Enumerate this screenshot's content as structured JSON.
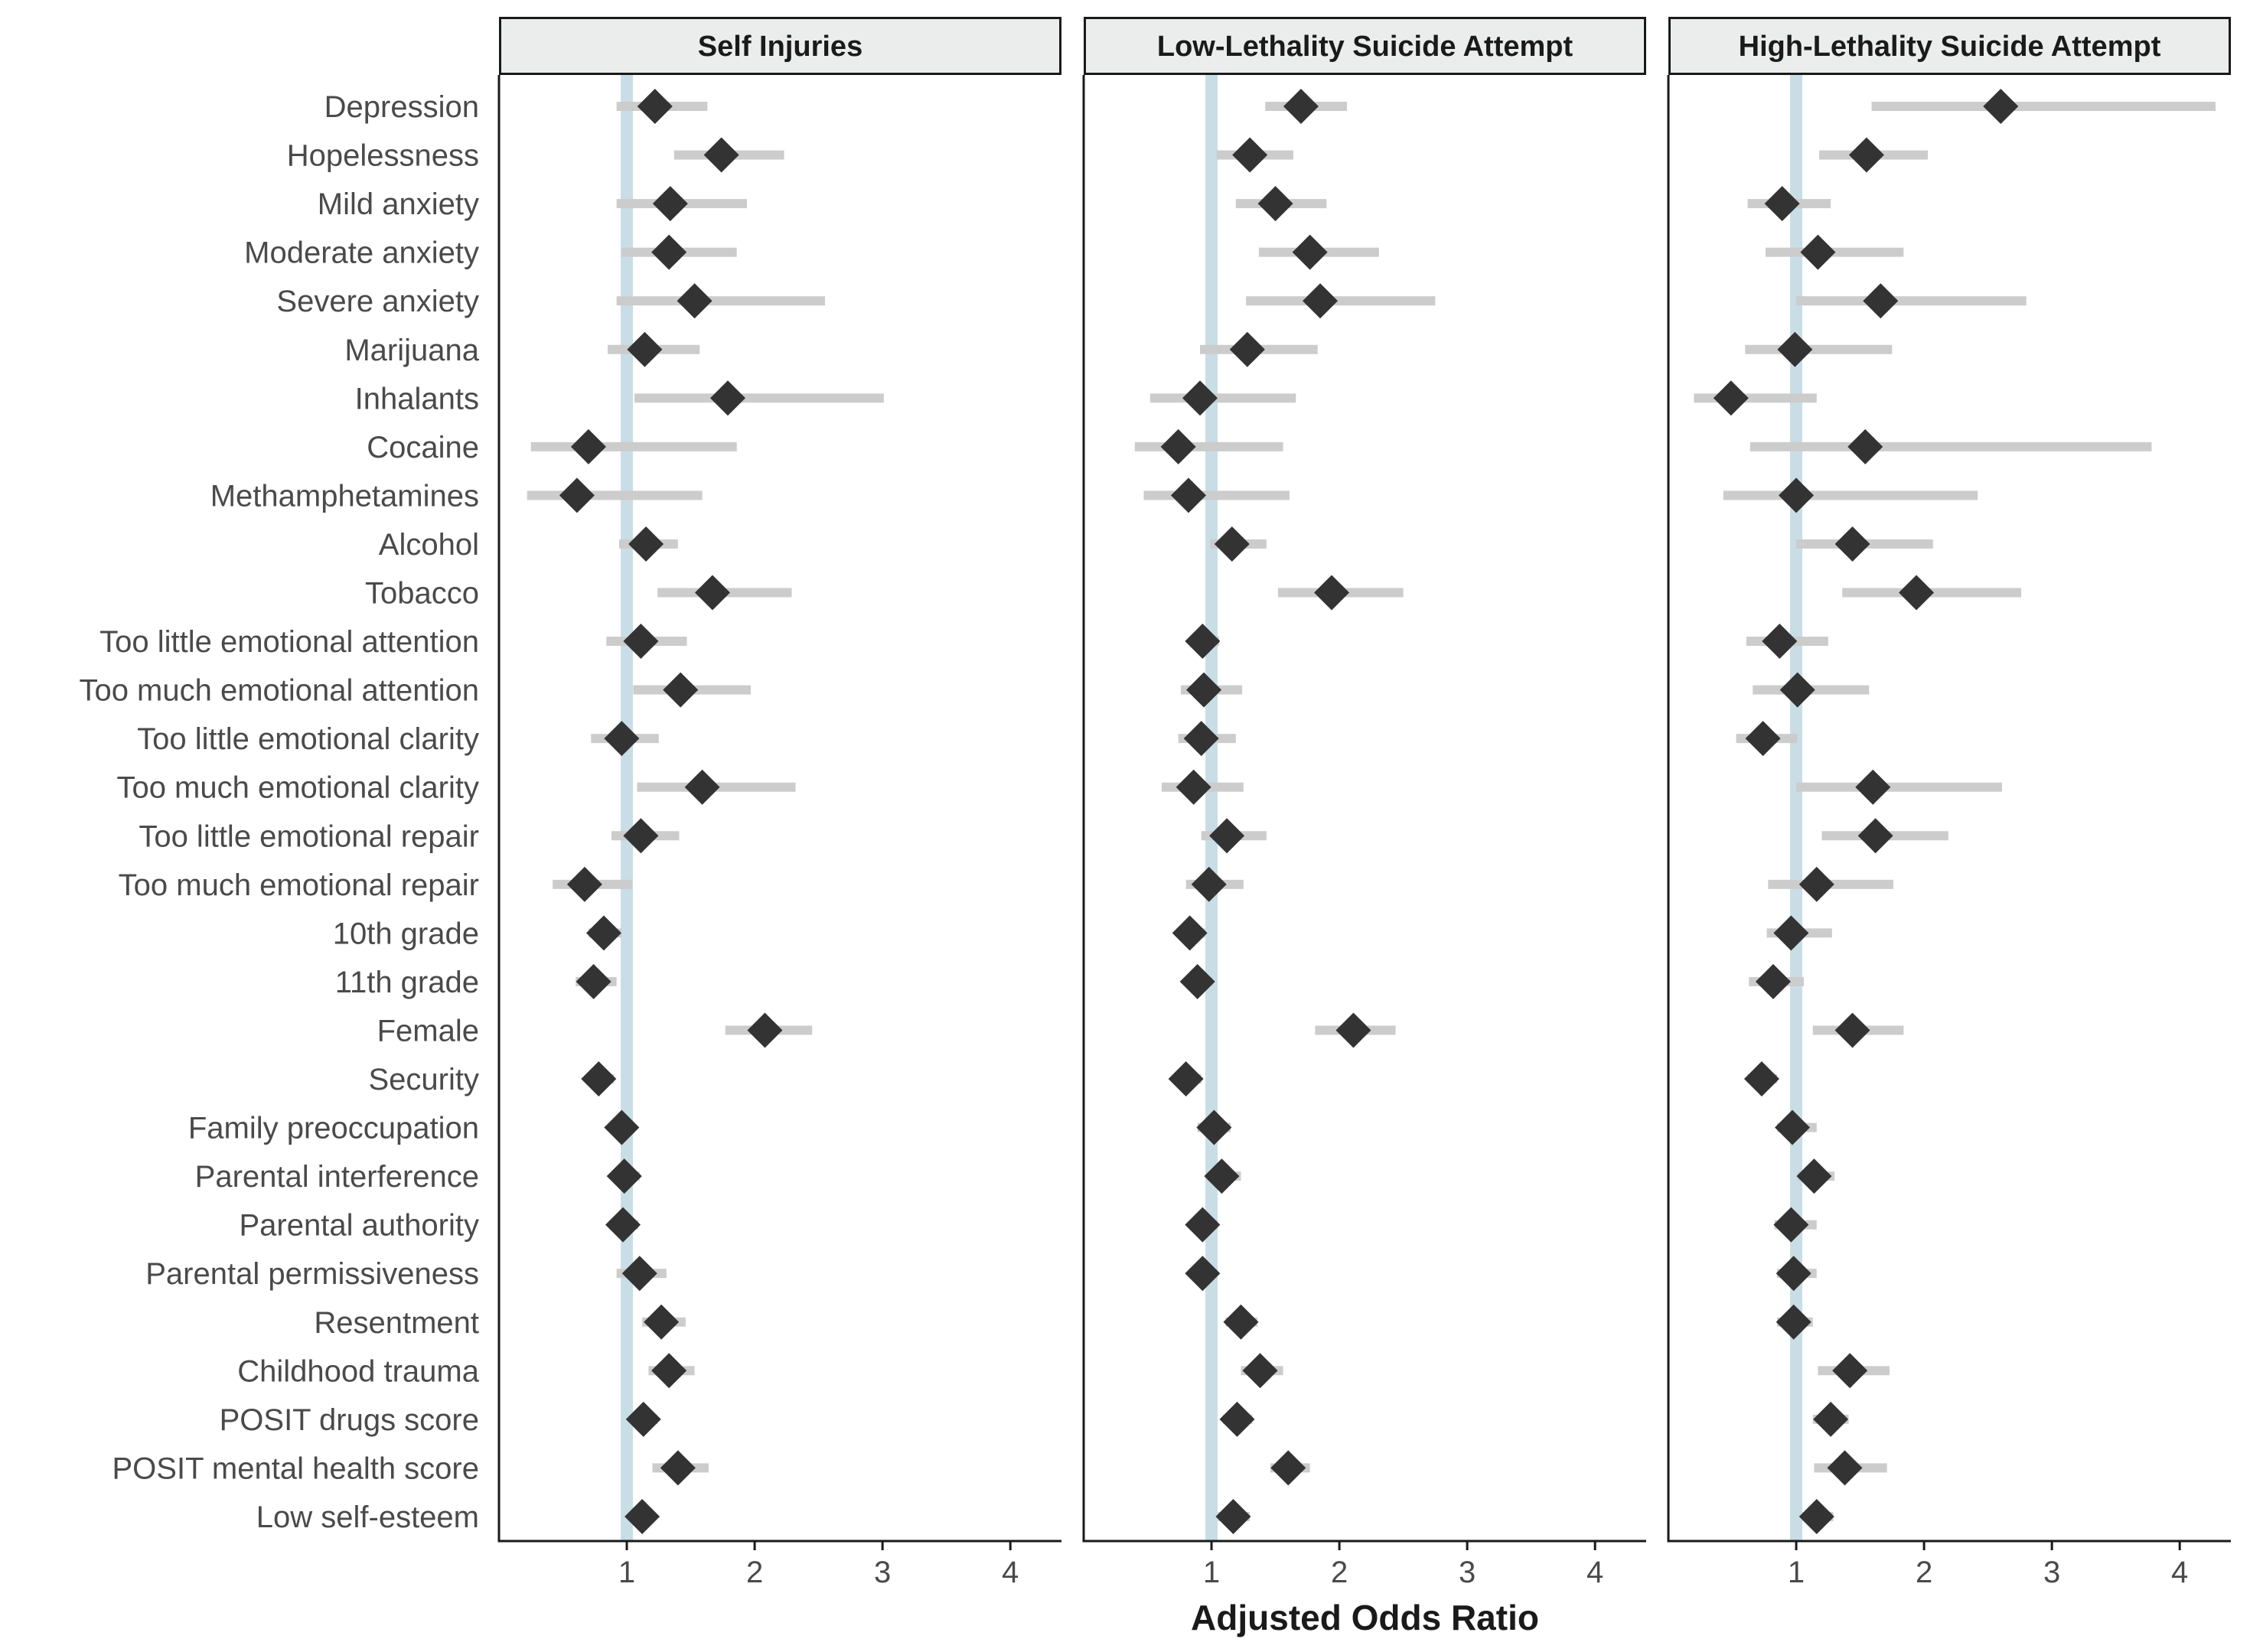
{
  "chart_data": {
    "type": "forest",
    "xlabel": "Adjusted Odds Ratio",
    "xticks": [
      1,
      2,
      3,
      4
    ],
    "xlim": [
      0.0,
      4.4
    ],
    "reference_value": 1,
    "colors": {
      "point": "#333333",
      "ci": "#cccccc",
      "reference": "#c9dde6",
      "strip": "#ebeded"
    },
    "rows": [
      "Depression",
      "Hopelessness",
      "Mild anxiety",
      "Moderate anxiety",
      "Severe anxiety",
      "Marijuana",
      "Inhalants",
      "Cocaine",
      "Methamphetamines",
      "Alcohol",
      "Tobacco",
      "Too little emotional attention",
      "Too much emotional attention",
      "Too little emotional clarity",
      "Too much emotional clarity",
      "Too little emotional repair",
      "Too much emotional repair",
      "10th grade",
      "11th grade",
      "Female",
      "Security",
      "Family preoccupation",
      "Parental interference",
      "Parental authority",
      "Parental permissiveness",
      "Resentment",
      "Childhood trauma",
      "POSIT drugs score",
      "POSIT mental health score",
      "Low self-esteem"
    ],
    "panels": [
      {
        "title": "Self Injuries",
        "or": [
          1.22,
          1.74,
          1.34,
          1.33,
          1.53,
          1.14,
          1.79,
          0.7,
          0.61,
          1.15,
          1.67,
          1.11,
          1.42,
          0.96,
          1.59,
          1.11,
          0.67,
          0.82,
          0.74,
          2.08,
          0.78,
          0.96,
          0.98,
          0.97,
          1.1,
          1.27,
          1.33,
          1.13,
          1.4,
          1.12
        ],
        "low": [
          0.92,
          1.37,
          0.92,
          0.96,
          0.92,
          0.85,
          1.06,
          0.25,
          0.22,
          0.94,
          1.24,
          0.84,
          1.05,
          0.72,
          1.08,
          0.88,
          0.42,
          0.7,
          0.6,
          1.77,
          0.68,
          0.86,
          0.88,
          0.86,
          0.92,
          1.12,
          1.17,
          1.04,
          1.2,
          1.03
        ],
        "high": [
          1.63,
          2.23,
          1.94,
          1.86,
          2.55,
          1.57,
          3.01,
          1.86,
          1.59,
          1.4,
          2.29,
          1.47,
          1.97,
          1.25,
          2.32,
          1.41,
          1.04,
          0.96,
          0.92,
          2.45,
          0.9,
          1.06,
          1.1,
          1.09,
          1.31,
          1.46,
          1.53,
          1.24,
          1.64,
          1.22
        ]
      },
      {
        "title": "Low-Lethality Suicide Attempt",
        "or": [
          1.7,
          1.3,
          1.5,
          1.77,
          1.85,
          1.28,
          0.91,
          0.74,
          0.82,
          1.16,
          1.94,
          0.93,
          0.94,
          0.92,
          0.86,
          1.12,
          0.98,
          0.83,
          0.89,
          2.11,
          0.8,
          1.02,
          1.08,
          0.93,
          0.93,
          1.23,
          1.38,
          1.2,
          1.6,
          1.17
        ],
        "low": [
          1.42,
          1.04,
          1.19,
          1.37,
          1.27,
          0.91,
          0.52,
          0.4,
          0.47,
          0.99,
          1.52,
          0.83,
          0.76,
          0.74,
          0.61,
          0.92,
          0.8,
          0.74,
          0.79,
          1.81,
          0.7,
          0.89,
          0.97,
          0.84,
          0.85,
          1.11,
          1.23,
          1.09,
          1.46,
          1.05
        ],
        "high": [
          2.06,
          1.64,
          1.9,
          2.31,
          2.75,
          1.83,
          1.66,
          1.56,
          1.61,
          1.43,
          2.5,
          1.06,
          1.24,
          1.19,
          1.25,
          1.43,
          1.25,
          0.95,
          1.01,
          2.44,
          0.92,
          1.15,
          1.23,
          1.05,
          1.04,
          1.36,
          1.56,
          1.32,
          1.77,
          1.3
        ]
      },
      {
        "title": "High-Lethality Suicide Attempt",
        "or": [
          2.6,
          1.55,
          0.89,
          1.17,
          1.66,
          0.99,
          0.49,
          1.54,
          1.0,
          1.44,
          1.94,
          0.87,
          1.01,
          0.74,
          1.6,
          1.62,
          1.16,
          0.96,
          0.82,
          1.44,
          0.73,
          0.97,
          1.14,
          0.96,
          0.98,
          0.98,
          1.42,
          1.27,
          1.38,
          1.16
        ],
        "low": [
          1.59,
          1.18,
          0.62,
          0.76,
          1.0,
          0.6,
          0.2,
          0.64,
          0.43,
          1.0,
          1.36,
          0.61,
          0.66,
          0.53,
          1.0,
          1.2,
          0.78,
          0.77,
          0.63,
          1.13,
          0.62,
          0.85,
          1.01,
          0.83,
          0.85,
          0.85,
          1.17,
          1.13,
          1.14,
          1.05
        ],
        "high": [
          4.28,
          2.03,
          1.27,
          1.84,
          2.8,
          1.75,
          1.16,
          3.78,
          2.42,
          2.07,
          2.76,
          1.25,
          1.57,
          1.01,
          2.61,
          2.19,
          1.76,
          1.28,
          1.06,
          1.84,
          0.85,
          1.16,
          1.3,
          1.16,
          1.16,
          1.13,
          1.73,
          1.41,
          1.71,
          1.29
        ]
      }
    ]
  }
}
